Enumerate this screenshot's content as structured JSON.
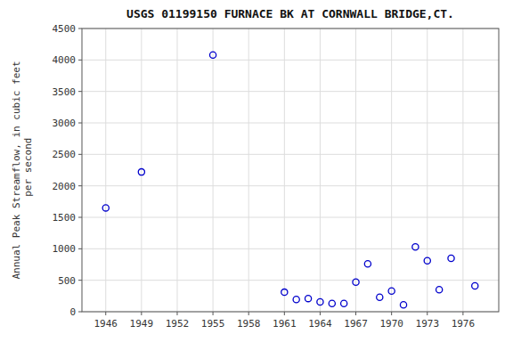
{
  "chart_data": {
    "type": "scatter",
    "title": "USGS 01199150 FURNACE BK AT CORNWALL BRIDGE,CT.",
    "ylabel": "Annual Peak Streamflow, in cubic feet\n per second",
    "x": [
      1946,
      1949,
      1955,
      1961,
      1962,
      1963,
      1964,
      1965,
      1966,
      1967,
      1968,
      1969,
      1970,
      1971,
      1972,
      1973,
      1974,
      1975,
      1977
    ],
    "values": [
      1650,
      2220,
      4080,
      310,
      195,
      210,
      155,
      130,
      130,
      470,
      760,
      230,
      330,
      110,
      1030,
      810,
      350,
      850,
      410
    ],
    "xlim": [
      1944,
      1979
    ],
    "ylim": [
      0,
      4500
    ],
    "xticks": [
      1946,
      1949,
      1952,
      1955,
      1958,
      1961,
      1964,
      1967,
      1970,
      1973,
      1976
    ],
    "yticks": [
      0,
      500,
      1000,
      1500,
      2000,
      2500,
      3000,
      3500,
      4000,
      4500
    ],
    "color": "#0000cc",
    "marker": "open-circle",
    "grid": true
  }
}
